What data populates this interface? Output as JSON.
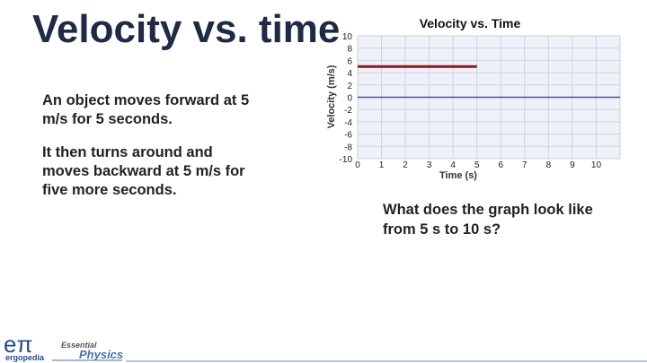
{
  "slide": {
    "title": "Velocity vs. time",
    "paragraphs": [
      "An object moves forward at 5 m/s for 5 seconds.",
      "It then turns around and moves backward at 5 m/s for five more seconds."
    ],
    "question": "What does the graph look like from 5 s to 10 s?",
    "logo": {
      "symbol": "eπ",
      "brand": "ergopedia",
      "series_top": "Essential",
      "series_bottom": "Physics"
    }
  },
  "chart_data": {
    "type": "line",
    "title": "Velocity vs. Time",
    "x_label": "Time (s)",
    "y_label": "Velocity (m/s)",
    "series": [
      {
        "name": "Velocity",
        "color": "#8b1a1a",
        "x": [
          0,
          5
        ],
        "values": [
          5,
          5
        ]
      }
    ],
    "xlim": [
      0,
      11
    ],
    "xticks": [
      0,
      1,
      2,
      3,
      4,
      5,
      6,
      7,
      8,
      9,
      10
    ],
    "ylim": [
      -10,
      10
    ],
    "yticks": [
      -10,
      -8,
      -6,
      -4,
      -2,
      0,
      2,
      4,
      6,
      8,
      10
    ],
    "grid": true,
    "zero_line_color": "#3f51a5"
  }
}
